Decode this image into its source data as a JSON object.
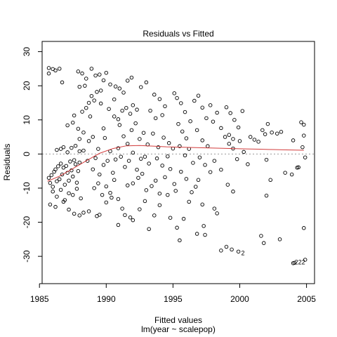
{
  "chart_data": {
    "type": "scatter",
    "title": "Residuals vs Fitted",
    "xlabel": "Fitted values",
    "subtitle": "lm(year ~ scalepop)",
    "ylabel": "Residuals",
    "xlim": [
      1985.2,
      2005.6
    ],
    "ylim": [
      -38,
      33
    ],
    "xticks": [
      1985,
      1990,
      1995,
      2000,
      2005
    ],
    "yticks": [
      -30,
      -20,
      -10,
      0,
      10,
      20,
      30
    ],
    "reference_line_y": 0,
    "points": [
      [
        1985.7,
        25.2
      ],
      [
        1985.7,
        23.6
      ],
      [
        1986.0,
        24.9
      ],
      [
        1986.2,
        24.5
      ],
      [
        1986.5,
        25.0
      ],
      [
        1986.7,
        21.0
      ],
      [
        1985.7,
        -7.0
      ],
      [
        1985.8,
        -8.5
      ],
      [
        1985.9,
        -6.2
      ],
      [
        1986.0,
        -9.6
      ],
      [
        1986.1,
        -5.2
      ],
      [
        1986.2,
        -4.5
      ],
      [
        1986.3,
        -8.0
      ],
      [
        1986.4,
        -3.6
      ],
      [
        1986.5,
        -7.4
      ],
      [
        1986.6,
        -2.8
      ],
      [
        1986.7,
        -6.0
      ],
      [
        1986.8,
        -4.0
      ],
      [
        1986.9,
        -9.0
      ],
      [
        1987.0,
        -3.5
      ],
      [
        1987.1,
        -5.5
      ],
      [
        1987.2,
        -7.8
      ],
      [
        1987.3,
        -2.2
      ],
      [
        1987.4,
        -4.8
      ],
      [
        1987.5,
        -6.6
      ],
      [
        1987.6,
        -1.8
      ],
      [
        1987.7,
        -3.0
      ],
      [
        1987.8,
        -8.4
      ],
      [
        1987.9,
        -5.0
      ],
      [
        1988.0,
        -2.5
      ],
      [
        1986.0,
        -11.0
      ],
      [
        1986.3,
        -12.5
      ],
      [
        1986.6,
        -10.5
      ],
      [
        1986.9,
        -13.5
      ],
      [
        1987.2,
        -11.5
      ],
      [
        1987.5,
        -12.0
      ],
      [
        1987.8,
        -10.2
      ],
      [
        1988.1,
        -13.0
      ],
      [
        1985.8,
        -14.8
      ],
      [
        1986.2,
        -15.5
      ],
      [
        1986.8,
        -14.0
      ],
      [
        1987.2,
        -16.3
      ],
      [
        1987.6,
        -17.5
      ],
      [
        1988.0,
        -18.0
      ],
      [
        1988.3,
        -17.2
      ],
      [
        1988.7,
        -16.8
      ],
      [
        1986.3,
        1.2
      ],
      [
        1986.6,
        1.5
      ],
      [
        1986.8,
        2.0
      ],
      [
        1987.1,
        0.5
      ],
      [
        1987.4,
        1.8
      ],
      [
        1987.7,
        2.4
      ],
      [
        1988.0,
        0.8
      ],
      [
        1988.3,
        1.0
      ],
      [
        1987.1,
        8.4
      ],
      [
        1987.5,
        9.2
      ],
      [
        1987.9,
        7.4
      ],
      [
        1988.2,
        12.4
      ],
      [
        1988.5,
        13.5
      ],
      [
        1988.8,
        11.0
      ],
      [
        1987.6,
        11.3
      ],
      [
        1988.0,
        4.4
      ],
      [
        1987.9,
        24.2
      ],
      [
        1988.2,
        23.6
      ],
      [
        1988.5,
        22.1
      ],
      [
        1988.9,
        25.0
      ],
      [
        1989.2,
        23.0
      ],
      [
        1989.5,
        23.3
      ],
      [
        1989.8,
        21.6
      ],
      [
        1988.0,
        19.7
      ],
      [
        1988.4,
        20.0
      ],
      [
        1988.9,
        17.0
      ],
      [
        1989.3,
        18.2
      ],
      [
        1989.6,
        18.6
      ],
      [
        1989.1,
        15.7
      ],
      [
        1989.6,
        14.8
      ],
      [
        1988.7,
        15.0
      ],
      [
        1988.3,
        6.3
      ],
      [
        1988.7,
        3.8
      ],
      [
        1989.0,
        5.0
      ],
      [
        1989.4,
        1.5
      ],
      [
        1989.8,
        7.5
      ],
      [
        1989.9,
        4.7
      ],
      [
        1988.6,
        -2.0
      ],
      [
        1989.0,
        -4.5
      ],
      [
        1989.2,
        -1.2
      ],
      [
        1989.5,
        -6.0
      ],
      [
        1989.8,
        -3.2
      ],
      [
        1990.1,
        -2.0
      ],
      [
        1990.3,
        0.8
      ],
      [
        1990.5,
        -5.5
      ],
      [
        1990.7,
        -1.6
      ],
      [
        1990.9,
        1.7
      ],
      [
        1989.1,
        -10.0
      ],
      [
        1989.4,
        -8.6
      ],
      [
        1989.7,
        -12.0
      ],
      [
        1990.0,
        -9.5
      ],
      [
        1990.3,
        -11.4
      ],
      [
        1990.6,
        -7.6
      ],
      [
        1990.9,
        -13.2
      ],
      [
        1989.3,
        -18.2
      ],
      [
        1989.5,
        -17.8
      ],
      [
        1990.0,
        -14.2
      ],
      [
        1990.4,
        -12.8
      ],
      [
        1990.9,
        -20.8
      ],
      [
        1991.2,
        -16.0
      ],
      [
        1991.4,
        -17.9
      ],
      [
        1990.0,
        23.8
      ],
      [
        1990.3,
        20.4
      ],
      [
        1990.7,
        19.8
      ],
      [
        1991.0,
        19.2
      ],
      [
        1991.3,
        18.0
      ],
      [
        1991.6,
        21.5
      ],
      [
        1991.9,
        22.4
      ],
      [
        1990.6,
        16.0
      ],
      [
        1990.2,
        13.2
      ],
      [
        1990.6,
        11.0
      ],
      [
        1990.9,
        10.2
      ],
      [
        1991.2,
        12.7
      ],
      [
        1991.5,
        13.5
      ],
      [
        1991.8,
        11.8
      ],
      [
        1992.0,
        14.3
      ],
      [
        1992.3,
        13.0
      ],
      [
        1991.0,
        8.5
      ],
      [
        1991.3,
        5.2
      ],
      [
        1991.6,
        3.0
      ],
      [
        1991.9,
        7.0
      ],
      [
        1992.2,
        9.0
      ],
      [
        1992.5,
        4.4
      ],
      [
        1992.8,
        6.2
      ],
      [
        1993.1,
        2.8
      ],
      [
        1991.1,
        -0.8
      ],
      [
        1991.4,
        -3.8
      ],
      [
        1991.7,
        -2.0
      ],
      [
        1992.0,
        0.4
      ],
      [
        1992.3,
        -4.6
      ],
      [
        1992.6,
        -1.4
      ],
      [
        1992.9,
        -0.8
      ],
      [
        1993.2,
        -2.8
      ],
      [
        1991.6,
        -9.2
      ],
      [
        1992.0,
        -8.6
      ],
      [
        1992.4,
        -7.0
      ],
      [
        1992.7,
        -5.8
      ],
      [
        1993.0,
        -10.6
      ],
      [
        1993.4,
        -9.4
      ],
      [
        1993.7,
        -7.8
      ],
      [
        1991.8,
        -18.6
      ],
      [
        1992.0,
        -19.4
      ],
      [
        1992.5,
        -16.2
      ],
      [
        1992.9,
        -13.8
      ],
      [
        1993.2,
        -22.0
      ],
      [
        1993.6,
        -18.0
      ],
      [
        1994.0,
        -15.0
      ],
      [
        1992.6,
        19.6
      ],
      [
        1993.0,
        21.0
      ],
      [
        1993.6,
        17.4
      ],
      [
        1994.0,
        16.1
      ],
      [
        1994.4,
        14.0
      ],
      [
        1993.3,
        12.7
      ],
      [
        1993.7,
        10.5
      ],
      [
        1994.2,
        11.4
      ],
      [
        1993.5,
        6.0
      ],
      [
        1993.9,
        2.0
      ],
      [
        1994.3,
        4.8
      ],
      [
        1994.7,
        3.2
      ],
      [
        1995.0,
        1.6
      ],
      [
        1993.8,
        -1.3
      ],
      [
        1994.2,
        -3.4
      ],
      [
        1994.6,
        -0.7
      ],
      [
        1994.4,
        -6.8
      ],
      [
        1994.8,
        -4.4
      ],
      [
        1995.1,
        -8.8
      ],
      [
        1994.0,
        -11.6
      ],
      [
        1994.6,
        -12.0
      ],
      [
        1995.2,
        -10.8
      ],
      [
        1994.8,
        -18.7
      ],
      [
        1995.3,
        -21.6
      ],
      [
        1995.1,
        17.8
      ],
      [
        1995.3,
        16.4
      ],
      [
        1995.6,
        14.9
      ],
      [
        1995.9,
        12.3
      ],
      [
        1995.4,
        8.8
      ],
      [
        1995.7,
        6.6
      ],
      [
        1996.0,
        4.6
      ],
      [
        1996.3,
        9.6
      ],
      [
        1995.5,
        2.3
      ],
      [
        1995.9,
        -0.4
      ],
      [
        1996.2,
        1.5
      ],
      [
        1996.5,
        -2.6
      ],
      [
        1995.6,
        -5.2
      ],
      [
        1996.0,
        -7.3
      ],
      [
        1996.4,
        -11.2
      ],
      [
        1996.7,
        -9.6
      ],
      [
        1995.5,
        -25.3
      ],
      [
        1996.8,
        -23.4
      ],
      [
        1996.2,
        -14.0
      ],
      [
        1995.8,
        -19.0
      ],
      [
        1996.6,
        15.6
      ],
      [
        1996.9,
        17.1
      ],
      [
        1997.2,
        13.6
      ],
      [
        1997.5,
        10.5
      ],
      [
        1997.8,
        14.3
      ],
      [
        1996.8,
        7.0
      ],
      [
        1997.2,
        4.0
      ],
      [
        1997.6,
        2.3
      ],
      [
        1997.0,
        -1.0
      ],
      [
        1997.4,
        -3.2
      ],
      [
        1997.8,
        -5.3
      ],
      [
        1998.1,
        -2.0
      ],
      [
        1996.9,
        -7.6
      ],
      [
        1997.2,
        -14.8
      ],
      [
        1997.3,
        -21.1
      ],
      [
        1997.4,
        -23.7
      ],
      [
        1998.0,
        9.5
      ],
      [
        1998.3,
        12.1
      ],
      [
        1998.6,
        7.6
      ],
      [
        1998.9,
        5.0
      ],
      [
        1999.2,
        3.0
      ],
      [
        1999.5,
        1.6
      ],
      [
        1999.8,
        -1.5
      ],
      [
        1998.6,
        -4.6
      ],
      [
        1998.1,
        -16.0
      ],
      [
        1998.3,
        -17.4
      ],
      [
        1998.6,
        -28.3
      ],
      [
        1999.0,
        -27.2
      ],
      [
        1999.4,
        -28.0
      ],
      [
        1999.9,
        -28.6
      ],
      [
        1999.1,
        -9.0
      ],
      [
        1999.5,
        -11.0
      ],
      [
        1999.0,
        13.7
      ],
      [
        1999.3,
        12.0
      ],
      [
        1999.6,
        10.0
      ],
      [
        1999.9,
        7.8
      ],
      [
        2000.2,
        12.6
      ],
      [
        2000.0,
        3.8
      ],
      [
        2000.3,
        0.6
      ],
      [
        2000.6,
        -3.0
      ],
      [
        1999.2,
        5.6
      ],
      [
        1999.5,
        4.4
      ],
      [
        2000.8,
        5.0
      ],
      [
        2001.1,
        4.2
      ],
      [
        2001.4,
        3.6
      ],
      [
        2001.7,
        7.0
      ],
      [
        2001.9,
        5.8
      ],
      [
        2002.1,
        8.8
      ],
      [
        2002.4,
        6.3
      ],
      [
        2002.8,
        6.0
      ],
      [
        2003.1,
        6.5
      ],
      [
        2002.0,
        -1.7
      ],
      [
        2002.3,
        -7.6
      ],
      [
        2002.0,
        -12.2
      ],
      [
        2001.6,
        -24.0
      ],
      [
        2001.8,
        -26.1
      ],
      [
        2003.0,
        -25.0
      ],
      [
        2003.4,
        -5.5
      ],
      [
        2003.9,
        -6.0
      ],
      [
        2004.3,
        -4.0
      ],
      [
        2004.6,
        9.3
      ],
      [
        2004.8,
        8.6
      ],
      [
        2004.8,
        5.4
      ],
      [
        2004.4,
        -3.9
      ],
      [
        2004.8,
        -21.7
      ],
      [
        2004.9,
        -31.0
      ],
      [
        2004.0,
        -32.0
      ],
      [
        2004.1,
        -31.9
      ],
      [
        2004.7,
        2.0
      ],
      [
        2004.9,
        -1.0
      ],
      [
        2004.0,
        4.0
      ]
    ],
    "smooth_line": [
      [
        1985.6,
        -8.0
      ],
      [
        1986.5,
        -6.5
      ],
      [
        1987.5,
        -4.3
      ],
      [
        1988.5,
        -2.0
      ],
      [
        1989.5,
        0.2
      ],
      [
        1990.5,
        1.6
      ],
      [
        1991.5,
        2.4
      ],
      [
        1992.5,
        2.5
      ],
      [
        1993.5,
        2.3
      ],
      [
        1994.5,
        2.1
      ],
      [
        1995.5,
        2.0
      ],
      [
        1996.5,
        1.9
      ],
      [
        1997.5,
        1.8
      ],
      [
        1998.5,
        1.7
      ],
      [
        1999.5,
        1.6
      ],
      [
        2000.5,
        1.5
      ],
      [
        2001.5,
        1.4
      ],
      [
        2002.5,
        1.3
      ],
      [
        2003.5,
        1.2
      ],
      [
        2004.8,
        1.1
      ]
    ],
    "point_labels": [
      {
        "text": "2",
        "x": 2000.0,
        "y": -29.0
      },
      {
        "text": "222",
        "x": 2004.0,
        "y": -31.7
      }
    ],
    "colors": {
      "points": "#000000",
      "smooth": "#d23c3c",
      "reference": "#999999"
    }
  }
}
